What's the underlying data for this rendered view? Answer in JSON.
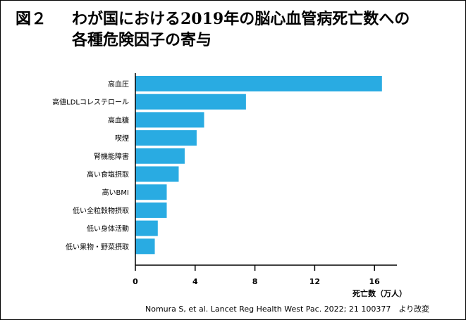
{
  "title": {
    "figure_label": "図２",
    "line1": "わが国における2019年の脳心血管病死亡数への",
    "line2": "各種危険因子の寄与"
  },
  "chart_data": {
    "type": "bar",
    "orientation": "horizontal",
    "categories": [
      "高血圧",
      "高値LDLコレステロール",
      "高血糖",
      "喫煙",
      "腎機能障害",
      "高い食塩摂取",
      "高いBMI",
      "低い全粒穀物摂取",
      "低い身体活動",
      "低い果物・野菜摂取"
    ],
    "values": [
      16.5,
      7.4,
      4.6,
      4.1,
      3.3,
      2.9,
      2.1,
      2.1,
      1.5,
      1.3
    ],
    "xlim": [
      0,
      17.5
    ],
    "xticks": [
      0,
      4,
      8,
      12,
      16
    ],
    "xlabel": "死亡数（万人）",
    "ylabel": "",
    "grid": false,
    "bar_color": "#29abe2"
  },
  "source": "Nomura S, et al. Lancet Reg Health West Pac. 2022; 21 100377　より改変"
}
